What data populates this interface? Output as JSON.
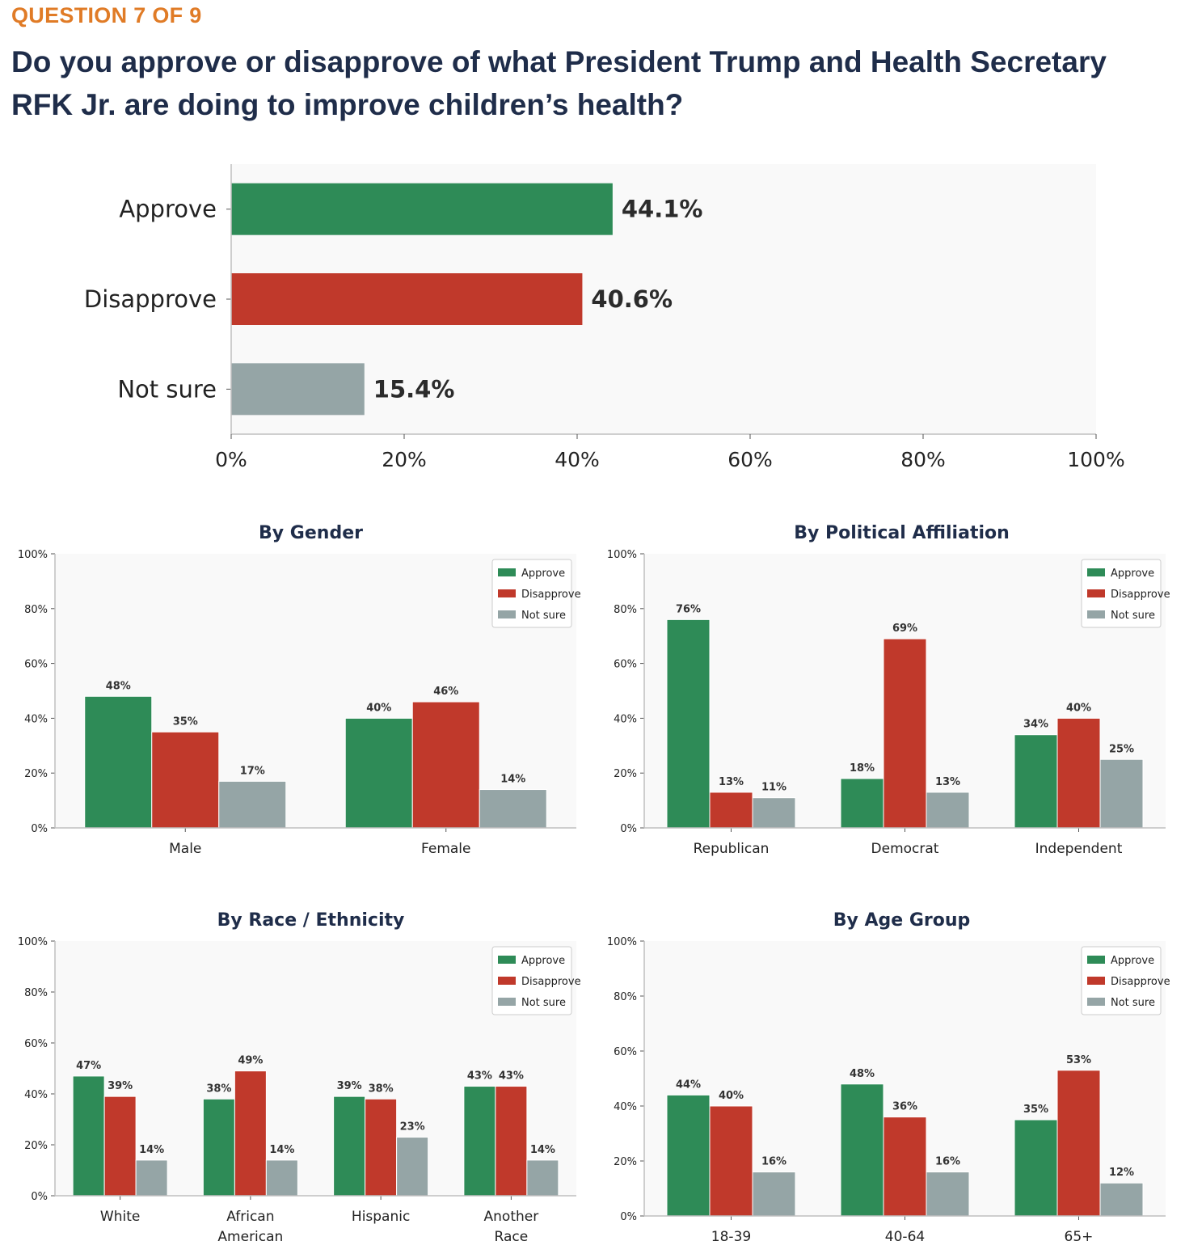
{
  "header": {
    "question_number": "QUESTION 7 OF 9",
    "question_text": "Do you approve or disapprove of what President Trump and Health Secretary RFK Jr. are doing to improve children’s health?"
  },
  "colors": {
    "approve": "#2e8b57",
    "disapprove": "#c0392b",
    "not_sure": "#95a5a6",
    "title": "#1f2d4a",
    "accent": "#e07b26"
  },
  "chart_data": [
    {
      "id": "overall",
      "type": "bar",
      "orientation": "horizontal",
      "title": "",
      "categories": [
        "Approve",
        "Disapprove",
        "Not sure"
      ],
      "values": [
        44.1,
        40.6,
        15.4
      ],
      "value_labels": [
        "44.1%",
        "40.6%",
        "15.4%"
      ],
      "xlim": [
        0,
        100
      ],
      "xticks": [
        "0%",
        "20%",
        "40%",
        "60%",
        "80%",
        "100%"
      ],
      "xlabel": "",
      "ylabel": ""
    },
    {
      "id": "gender",
      "type": "bar",
      "title": "By Gender",
      "categories": [
        "Male",
        "Female"
      ],
      "series": [
        {
          "name": "Approve",
          "values": [
            48,
            40
          ]
        },
        {
          "name": "Disapprove",
          "values": [
            35,
            46
          ]
        },
        {
          "name": "Not sure",
          "values": [
            17,
            14
          ]
        }
      ],
      "ylim": [
        0,
        100
      ],
      "yticks": [
        "0%",
        "20%",
        "40%",
        "60%",
        "80%",
        "100%"
      ],
      "legend": "top-right"
    },
    {
      "id": "party",
      "type": "bar",
      "title": "By Political Affiliation",
      "categories": [
        "Republican",
        "Democrat",
        "Independent"
      ],
      "series": [
        {
          "name": "Approve",
          "values": [
            76,
            18,
            34
          ]
        },
        {
          "name": "Disapprove",
          "values": [
            13,
            69,
            40
          ]
        },
        {
          "name": "Not sure",
          "values": [
            11,
            13,
            25
          ]
        }
      ],
      "ylim": [
        0,
        100
      ],
      "yticks": [
        "0%",
        "20%",
        "40%",
        "60%",
        "80%",
        "100%"
      ],
      "legend": "top-right"
    },
    {
      "id": "race",
      "type": "bar",
      "title": "By Race / Ethnicity",
      "categories": [
        "White",
        "African\nAmerican",
        "Hispanic",
        "Another\nRace"
      ],
      "series": [
        {
          "name": "Approve",
          "values": [
            47,
            38,
            39,
            43
          ]
        },
        {
          "name": "Disapprove",
          "values": [
            39,
            49,
            38,
            43
          ]
        },
        {
          "name": "Not sure",
          "values": [
            14,
            14,
            23,
            14
          ]
        }
      ],
      "ylim": [
        0,
        100
      ],
      "yticks": [
        "0%",
        "20%",
        "40%",
        "60%",
        "80%",
        "100%"
      ],
      "legend": "top-right"
    },
    {
      "id": "age",
      "type": "bar",
      "title": "By Age Group",
      "categories": [
        "18-39",
        "40-64",
        "65+"
      ],
      "series": [
        {
          "name": "Approve",
          "values": [
            44,
            48,
            35
          ]
        },
        {
          "name": "Disapprove",
          "values": [
            40,
            36,
            53
          ]
        },
        {
          "name": "Not sure",
          "values": [
            16,
            16,
            12
          ]
        }
      ],
      "ylim": [
        0,
        100
      ],
      "yticks": [
        "0%",
        "20%",
        "40%",
        "60%",
        "80%",
        "100%"
      ],
      "legend": "top-right"
    }
  ]
}
